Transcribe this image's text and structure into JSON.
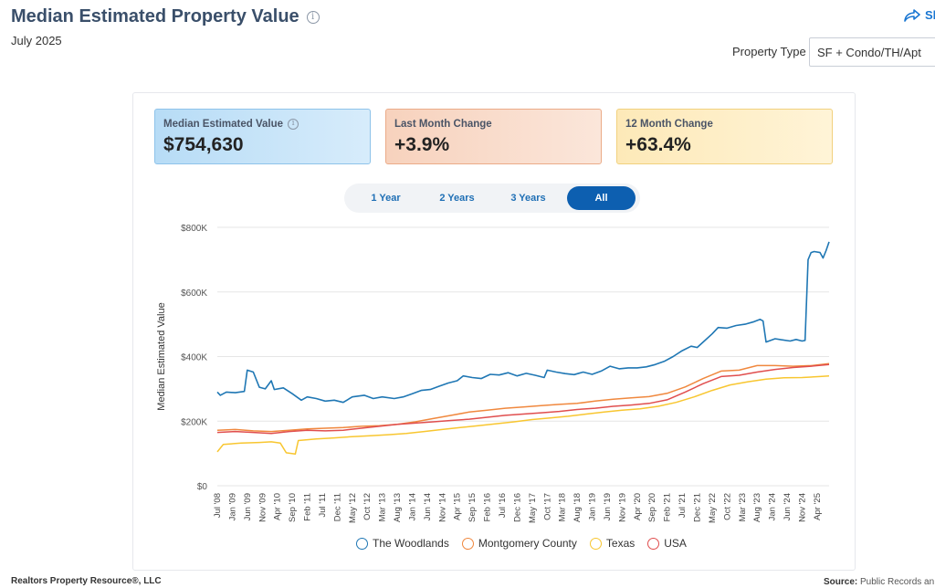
{
  "header": {
    "title": "Median Estimated Property Value",
    "subtitle": "July 2025",
    "share_label": "Sh",
    "property_type_label": "Property Type",
    "property_type_value": "SF + Condo/TH/Apt"
  },
  "kpis": [
    {
      "label": "Median Estimated Value",
      "value": "$754,630",
      "has_info": true
    },
    {
      "label": "Last Month Change",
      "value": "+3.9%"
    },
    {
      "label": "12 Month Change",
      "value": "+63.4%"
    }
  ],
  "range_tabs": [
    {
      "label": "1 Year",
      "active": false
    },
    {
      "label": "2 Years",
      "active": false
    },
    {
      "label": "3 Years",
      "active": false
    },
    {
      "label": "All",
      "active": true
    }
  ],
  "footer": {
    "left": "Realtors Property Resource®, LLC",
    "source_label": "Source:",
    "source_text": " Public Records an"
  },
  "colors": {
    "woodlands": "#1f77b4",
    "montgomery": "#f0883e",
    "texas": "#f8c630",
    "usa": "#e04e4e",
    "accent": "#0d5fb0"
  },
  "chart_data": {
    "type": "line",
    "ylabel": "Median Estimated Value",
    "ylim": [
      0,
      800000
    ],
    "yticks": [
      0,
      200000,
      400000,
      600000,
      800000
    ],
    "ytick_labels": [
      "$0",
      "$200K",
      "$400K",
      "$600K",
      "$800K"
    ],
    "xlim": [
      "2008-07",
      "2025-07"
    ],
    "xtick_labels": [
      "Jul '08",
      "Jan '09",
      "Jun '09",
      "Nov '09",
      "Apr '10",
      "Sep '10",
      "Feb '11",
      "Jul '11",
      "Dec '11",
      "May '12",
      "Oct '12",
      "Mar '13",
      "Aug '13",
      "Jan '14",
      "Jun '14",
      "Nov '14",
      "Apr '15",
      "Sep '15",
      "Feb '16",
      "Jul '16",
      "Dec '16",
      "May '17",
      "Oct '17",
      "Mar '18",
      "Aug '18",
      "Jan '19",
      "Jun '19",
      "Nov '19",
      "Apr '20",
      "Sep '20",
      "Feb '21",
      "Jul '21",
      "Dec '21",
      "May '22",
      "Oct '22",
      "Mar '23",
      "Aug '23",
      "Jan '24",
      "Jun '24",
      "Nov '24",
      "Apr '25"
    ],
    "grid": true,
    "legend_position": "bottom",
    "series": [
      {
        "name": "The Woodlands",
        "color": "#1f77b4",
        "points": [
          [
            "2008-07",
            290000
          ],
          [
            "2008-08",
            280000
          ],
          [
            "2008-10",
            290000
          ],
          [
            "2009-01",
            288000
          ],
          [
            "2009-04",
            292000
          ],
          [
            "2009-05",
            358000
          ],
          [
            "2009-07",
            352000
          ],
          [
            "2009-09",
            305000
          ],
          [
            "2009-11",
            300000
          ],
          [
            "2010-01",
            325000
          ],
          [
            "2010-02",
            298000
          ],
          [
            "2010-05",
            303000
          ],
          [
            "2010-08",
            285000
          ],
          [
            "2010-11",
            265000
          ],
          [
            "2011-01",
            275000
          ],
          [
            "2011-04",
            270000
          ],
          [
            "2011-07",
            262000
          ],
          [
            "2011-10",
            265000
          ],
          [
            "2012-01",
            258000
          ],
          [
            "2012-04",
            275000
          ],
          [
            "2012-08",
            280000
          ],
          [
            "2012-11",
            270000
          ],
          [
            "2013-02",
            275000
          ],
          [
            "2013-06",
            270000
          ],
          [
            "2013-09",
            275000
          ],
          [
            "2013-12",
            285000
          ],
          [
            "2014-03",
            295000
          ],
          [
            "2014-06",
            298000
          ],
          [
            "2014-09",
            308000
          ],
          [
            "2014-12",
            318000
          ],
          [
            "2015-03",
            325000
          ],
          [
            "2015-05",
            340000
          ],
          [
            "2015-08",
            335000
          ],
          [
            "2015-11",
            332000
          ],
          [
            "2016-02",
            345000
          ],
          [
            "2016-05",
            343000
          ],
          [
            "2016-08",
            350000
          ],
          [
            "2016-11",
            340000
          ],
          [
            "2017-02",
            348000
          ],
          [
            "2017-05",
            342000
          ],
          [
            "2017-08",
            335000
          ],
          [
            "2017-09",
            358000
          ],
          [
            "2017-12",
            352000
          ],
          [
            "2018-03",
            347000
          ],
          [
            "2018-06",
            344000
          ],
          [
            "2018-09",
            352000
          ],
          [
            "2018-12",
            345000
          ],
          [
            "2019-03",
            355000
          ],
          [
            "2019-06",
            370000
          ],
          [
            "2019-09",
            362000
          ],
          [
            "2019-12",
            365000
          ],
          [
            "2020-03",
            365000
          ],
          [
            "2020-06",
            368000
          ],
          [
            "2020-09",
            375000
          ],
          [
            "2020-12",
            385000
          ],
          [
            "2021-03",
            400000
          ],
          [
            "2021-06",
            418000
          ],
          [
            "2021-09",
            432000
          ],
          [
            "2021-11",
            428000
          ],
          [
            "2022-01",
            445000
          ],
          [
            "2022-04",
            470000
          ],
          [
            "2022-06",
            490000
          ],
          [
            "2022-09",
            488000
          ],
          [
            "2022-12",
            496000
          ],
          [
            "2023-03",
            500000
          ],
          [
            "2023-06",
            508000
          ],
          [
            "2023-08",
            515000
          ],
          [
            "2023-09",
            510000
          ],
          [
            "2023-10",
            445000
          ],
          [
            "2024-01",
            455000
          ],
          [
            "2024-03",
            452000
          ],
          [
            "2024-06",
            448000
          ],
          [
            "2024-08",
            453000
          ],
          [
            "2024-10",
            448000
          ],
          [
            "2024-11",
            450000
          ],
          [
            "2024-12",
            700000
          ],
          [
            "2025-01",
            722000
          ],
          [
            "2025-02",
            725000
          ],
          [
            "2025-04",
            722000
          ],
          [
            "2025-05",
            705000
          ],
          [
            "2025-06",
            728000
          ],
          [
            "2025-07",
            755000
          ]
        ]
      },
      {
        "name": "Montgomery County",
        "color": "#f0883e",
        "points": [
          [
            "2008-07",
            172000
          ],
          [
            "2009-01",
            174000
          ],
          [
            "2009-07",
            170000
          ],
          [
            "2010-01",
            168000
          ],
          [
            "2010-07",
            172000
          ],
          [
            "2011-01",
            176000
          ],
          [
            "2011-07",
            178000
          ],
          [
            "2012-01",
            180000
          ],
          [
            "2012-07",
            184000
          ],
          [
            "2013-01",
            186000
          ],
          [
            "2013-07",
            190000
          ],
          [
            "2014-01",
            198000
          ],
          [
            "2014-07",
            208000
          ],
          [
            "2015-01",
            218000
          ],
          [
            "2015-07",
            228000
          ],
          [
            "2016-01",
            234000
          ],
          [
            "2016-07",
            240000
          ],
          [
            "2017-01",
            244000
          ],
          [
            "2017-07",
            248000
          ],
          [
            "2018-01",
            252000
          ],
          [
            "2018-07",
            255000
          ],
          [
            "2019-01",
            262000
          ],
          [
            "2019-07",
            268000
          ],
          [
            "2020-01",
            272000
          ],
          [
            "2020-07",
            276000
          ],
          [
            "2021-01",
            286000
          ],
          [
            "2021-07",
            306000
          ],
          [
            "2022-01",
            332000
          ],
          [
            "2022-07",
            355000
          ],
          [
            "2023-01",
            358000
          ],
          [
            "2023-07",
            372000
          ],
          [
            "2024-01",
            372000
          ],
          [
            "2024-07",
            370000
          ],
          [
            "2025-01",
            372000
          ],
          [
            "2025-07",
            378000
          ]
        ]
      },
      {
        "name": "Texas",
        "color": "#f8c630",
        "points": [
          [
            "2008-07",
            105000
          ],
          [
            "2008-09",
            128000
          ],
          [
            "2009-03",
            132000
          ],
          [
            "2009-09",
            134000
          ],
          [
            "2010-01",
            136000
          ],
          [
            "2010-04",
            132000
          ],
          [
            "2010-06",
            102000
          ],
          [
            "2010-09",
            98000
          ],
          [
            "2010-10",
            140000
          ],
          [
            "2011-04",
            145000
          ],
          [
            "2011-10",
            148000
          ],
          [
            "2012-04",
            152000
          ],
          [
            "2012-10",
            155000
          ],
          [
            "2013-04",
            158000
          ],
          [
            "2013-10",
            162000
          ],
          [
            "2014-04",
            168000
          ],
          [
            "2014-10",
            174000
          ],
          [
            "2015-04",
            180000
          ],
          [
            "2015-10",
            186000
          ],
          [
            "2016-04",
            192000
          ],
          [
            "2016-10",
            198000
          ],
          [
            "2017-04",
            205000
          ],
          [
            "2017-10",
            210000
          ],
          [
            "2018-04",
            215000
          ],
          [
            "2018-10",
            222000
          ],
          [
            "2019-04",
            228000
          ],
          [
            "2019-10",
            234000
          ],
          [
            "2020-04",
            238000
          ],
          [
            "2020-10",
            246000
          ],
          [
            "2021-04",
            258000
          ],
          [
            "2021-10",
            275000
          ],
          [
            "2022-04",
            295000
          ],
          [
            "2022-10",
            312000
          ],
          [
            "2023-04",
            322000
          ],
          [
            "2023-10",
            330000
          ],
          [
            "2024-04",
            334000
          ],
          [
            "2024-10",
            335000
          ],
          [
            "2025-04",
            338000
          ],
          [
            "2025-07",
            340000
          ]
        ]
      },
      {
        "name": "USA",
        "color": "#e04e4e",
        "points": [
          [
            "2008-07",
            165000
          ],
          [
            "2009-01",
            168000
          ],
          [
            "2009-07",
            165000
          ],
          [
            "2010-01",
            162000
          ],
          [
            "2010-07",
            168000
          ],
          [
            "2011-01",
            172000
          ],
          [
            "2011-07",
            170000
          ],
          [
            "2012-01",
            172000
          ],
          [
            "2012-07",
            178000
          ],
          [
            "2013-01",
            184000
          ],
          [
            "2013-07",
            190000
          ],
          [
            "2014-01",
            194000
          ],
          [
            "2014-07",
            198000
          ],
          [
            "2015-01",
            202000
          ],
          [
            "2015-07",
            206000
          ],
          [
            "2016-01",
            212000
          ],
          [
            "2016-07",
            218000
          ],
          [
            "2017-01",
            222000
          ],
          [
            "2017-07",
            226000
          ],
          [
            "2018-01",
            230000
          ],
          [
            "2018-07",
            236000
          ],
          [
            "2019-01",
            240000
          ],
          [
            "2019-07",
            246000
          ],
          [
            "2020-01",
            250000
          ],
          [
            "2020-07",
            255000
          ],
          [
            "2021-01",
            266000
          ],
          [
            "2021-07",
            290000
          ],
          [
            "2022-01",
            316000
          ],
          [
            "2022-07",
            338000
          ],
          [
            "2023-01",
            342000
          ],
          [
            "2023-07",
            352000
          ],
          [
            "2024-01",
            360000
          ],
          [
            "2024-07",
            366000
          ],
          [
            "2025-01",
            370000
          ],
          [
            "2025-07",
            375000
          ]
        ]
      }
    ]
  }
}
